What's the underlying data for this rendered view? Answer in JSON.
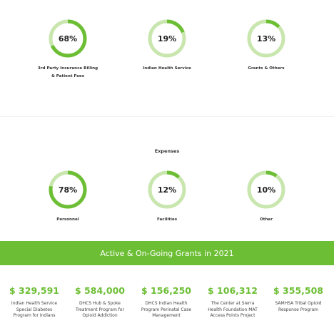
{
  "revenue": {
    "items": [
      {
        "percent_value": 68,
        "percent_label": "68%",
        "label_line1": "3rd Party Insurance Billing",
        "label_line2": "& Patient Fees"
      },
      {
        "percent_value": 19,
        "percent_label": "19%",
        "label_line1": "Indian Health Service",
        "label_line2": ""
      },
      {
        "percent_value": 13,
        "percent_label": "13%",
        "label_line1": "Grants & Others",
        "label_line2": ""
      }
    ]
  },
  "expenses": {
    "title": "Expenses",
    "items": [
      {
        "percent_value": 78,
        "percent_label": "78%",
        "label_line1": "Personnel"
      },
      {
        "percent_value": 12,
        "percent_label": "12%",
        "label_line1": "Facilities"
      },
      {
        "percent_value": 10,
        "percent_label": "10%",
        "label_line1": "Other"
      }
    ]
  },
  "grants": {
    "banner_title": "Active & On-Going Grants in 2021",
    "items": [
      {
        "amount": "$ 329,591",
        "desc_line1": "Indian Health Service",
        "desc_line2": "Special Diabetes",
        "desc_line3": "Program for Indians"
      },
      {
        "amount": "$ 584,000",
        "desc_line1": "DHCS Hub & Spoke",
        "desc_line2": "Treatment Program for",
        "desc_line3": "Opioid Addiction"
      },
      {
        "amount": "$ 156,250",
        "desc_line1": "DHCS Indian Health",
        "desc_line2": "Program Perinatal Case",
        "desc_line3": "Management"
      },
      {
        "amount": "$ 106,312",
        "desc_line1": "The Center at Sierra",
        "desc_line2": "Health Foundation MAT",
        "desc_line3": "Access Points Project"
      },
      {
        "amount": "$ 355,508",
        "desc_line1": "SAMHSA Tribal Opioid",
        "desc_line2": "Response Program",
        "desc_line3": ""
      }
    ]
  },
  "colors": {
    "accent": "#6cbe34",
    "ring_track": "#c8e6ae"
  }
}
